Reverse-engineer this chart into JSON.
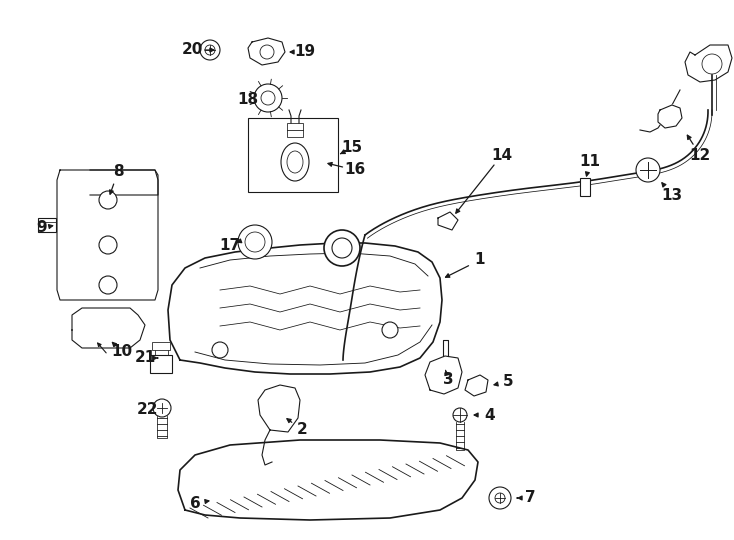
{
  "bg_color": "#ffffff",
  "line_color": "#1a1a1a",
  "fig_width": 7.34,
  "fig_height": 5.4,
  "dpi": 100,
  "font_size_labels": 11
}
